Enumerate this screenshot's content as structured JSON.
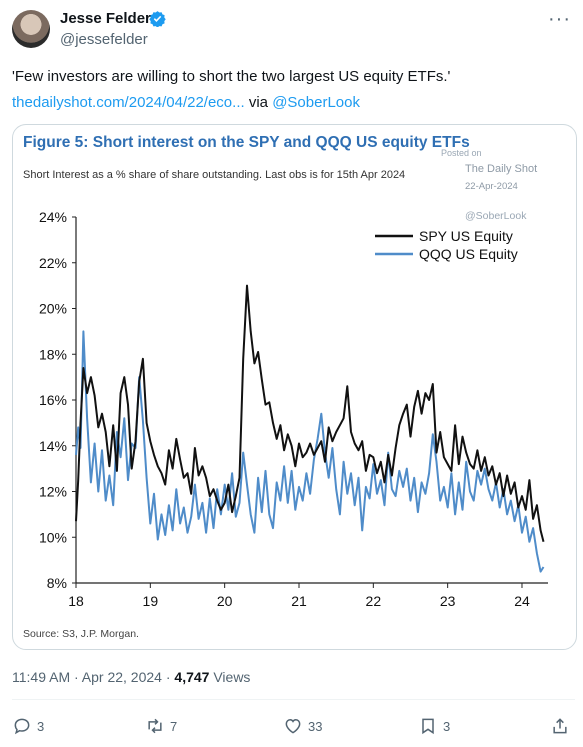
{
  "author": {
    "name": "Jesse Felder",
    "handle": "@jessefelder"
  },
  "tweet": {
    "quote": "'Few investors are willing to short the two largest US equity ETFs.'",
    "link_text": "thedailyshot.com/2024/04/22/eco...",
    "via_label": "via",
    "mention": "@SoberLook"
  },
  "figure": {
    "title": "Figure 5: Short interest on the SPY and QQQ US equity ETFs",
    "subtitle": "Short Interest as a % share of share outstanding. Last obs is for 15th Apr 2024",
    "source": "Source: S3, J.P. Morgan.",
    "watermark": {
      "posted_on": "Posted on",
      "site": "The Daily Shot",
      "date": "22-Apr-2024",
      "handle": "@SoberLook"
    }
  },
  "chart_data": {
    "type": "line",
    "title": "Figure 5: Short interest on the SPY and QQQ US equity ETFs",
    "subtitle": "Short Interest as a % share of share outstanding. Last obs is for 15th Apr 2024",
    "xlabel": "",
    "ylabel": "",
    "x_ticks": [
      "18",
      "19",
      "20",
      "21",
      "22",
      "23",
      "24"
    ],
    "y_ticks": [
      "8%",
      "10%",
      "12%",
      "14%",
      "16%",
      "18%",
      "20%",
      "22%",
      "24%"
    ],
    "xlim": [
      2018.0,
      2024.35
    ],
    "ylim": [
      8,
      24
    ],
    "grid": false,
    "legend_position": "top-right",
    "series": [
      {
        "name": "SPY US Equity",
        "color": "#111111",
        "x": [
          2018.0,
          2018.03,
          2018.06,
          2018.1,
          2018.15,
          2018.2,
          2018.25,
          2018.3,
          2018.35,
          2018.4,
          2018.45,
          2018.5,
          2018.55,
          2018.6,
          2018.65,
          2018.7,
          2018.75,
          2018.8,
          2018.85,
          2018.9,
          2018.95,
          2019.0,
          2019.05,
          2019.1,
          2019.15,
          2019.2,
          2019.25,
          2019.3,
          2019.35,
          2019.4,
          2019.45,
          2019.5,
          2019.55,
          2019.6,
          2019.65,
          2019.7,
          2019.75,
          2019.8,
          2019.85,
          2019.9,
          2019.95,
          2020.0,
          2020.05,
          2020.1,
          2020.15,
          2020.2,
          2020.25,
          2020.3,
          2020.35,
          2020.4,
          2020.45,
          2020.5,
          2020.55,
          2020.6,
          2020.65,
          2020.7,
          2020.75,
          2020.8,
          2020.85,
          2020.9,
          2020.95,
          2021.0,
          2021.05,
          2021.1,
          2021.15,
          2021.2,
          2021.25,
          2021.3,
          2021.35,
          2021.4,
          2021.45,
          2021.5,
          2021.55,
          2021.6,
          2021.65,
          2021.7,
          2021.75,
          2021.8,
          2021.85,
          2021.9,
          2021.95,
          2022.0,
          2022.05,
          2022.1,
          2022.15,
          2022.2,
          2022.25,
          2022.3,
          2022.35,
          2022.4,
          2022.45,
          2022.5,
          2022.55,
          2022.6,
          2022.65,
          2022.7,
          2022.75,
          2022.8,
          2022.85,
          2022.9,
          2022.95,
          2023.0,
          2023.05,
          2023.1,
          2023.15,
          2023.2,
          2023.25,
          2023.3,
          2023.35,
          2023.4,
          2023.45,
          2023.5,
          2023.55,
          2023.6,
          2023.65,
          2023.7,
          2023.75,
          2023.8,
          2023.85,
          2023.9,
          2023.95,
          2024.0,
          2024.05,
          2024.1,
          2024.15,
          2024.2,
          2024.25,
          2024.29
        ],
        "values": [
          10.7,
          12.5,
          15.0,
          17.4,
          16.3,
          17.0,
          16.2,
          14.8,
          15.4,
          14.6,
          13.1,
          14.9,
          12.9,
          16.3,
          17.0,
          15.8,
          13.0,
          14.2,
          16.8,
          17.8,
          15.0,
          14.2,
          13.6,
          13.1,
          12.8,
          12.3,
          13.8,
          13.0,
          14.3,
          13.4,
          12.6,
          12.8,
          11.9,
          13.9,
          12.7,
          13.1,
          12.6,
          11.8,
          12.1,
          11.6,
          11.2,
          11.5,
          12.3,
          11.1,
          11.8,
          12.6,
          17.8,
          21.0,
          19.0,
          17.6,
          18.1,
          16.9,
          15.8,
          15.9,
          15.0,
          14.3,
          14.9,
          13.8,
          14.5,
          14.0,
          13.1,
          14.1,
          13.5,
          13.7,
          14.1,
          13.6,
          13.9,
          14.2,
          13.3,
          14.8,
          14.2,
          14.6,
          14.9,
          15.2,
          16.6,
          14.6,
          14.1,
          13.8,
          14.2,
          12.9,
          13.6,
          13.5,
          12.8,
          13.3,
          12.4,
          13.6,
          12.7,
          13.9,
          14.9,
          15.4,
          15.8,
          14.4,
          15.7,
          16.4,
          15.4,
          16.3,
          16.0,
          16.7,
          13.7,
          14.6,
          13.5,
          13.2,
          12.9,
          14.9,
          13.2,
          14.4,
          13.7,
          13.2,
          13.0,
          13.8,
          12.9,
          13.5,
          12.7,
          13.1,
          12.3,
          12.8,
          11.8,
          12.7,
          11.9,
          12.4,
          11.3,
          11.8,
          11.2,
          12.5,
          10.8,
          11.4,
          10.3,
          9.8
        ]
      },
      {
        "name": "QQQ US Equity",
        "color": "#4f8cc9",
        "x": [
          2018.0,
          2018.03,
          2018.06,
          2018.1,
          2018.15,
          2018.2,
          2018.25,
          2018.3,
          2018.35,
          2018.4,
          2018.45,
          2018.5,
          2018.55,
          2018.6,
          2018.65,
          2018.7,
          2018.75,
          2018.8,
          2018.85,
          2018.9,
          2018.95,
          2019.0,
          2019.05,
          2019.1,
          2019.15,
          2019.2,
          2019.25,
          2019.3,
          2019.35,
          2019.4,
          2019.45,
          2019.5,
          2019.55,
          2019.6,
          2019.65,
          2019.7,
          2019.75,
          2019.8,
          2019.85,
          2019.9,
          2019.95,
          2020.0,
          2020.05,
          2020.1,
          2020.15,
          2020.2,
          2020.25,
          2020.3,
          2020.35,
          2020.4,
          2020.45,
          2020.5,
          2020.55,
          2020.6,
          2020.65,
          2020.7,
          2020.75,
          2020.8,
          2020.85,
          2020.9,
          2020.95,
          2021.0,
          2021.05,
          2021.1,
          2021.15,
          2021.2,
          2021.25,
          2021.3,
          2021.35,
          2021.4,
          2021.45,
          2021.5,
          2021.55,
          2021.6,
          2021.65,
          2021.7,
          2021.75,
          2021.8,
          2021.85,
          2021.9,
          2021.95,
          2022.0,
          2022.05,
          2022.1,
          2022.15,
          2022.2,
          2022.25,
          2022.3,
          2022.35,
          2022.4,
          2022.45,
          2022.5,
          2022.55,
          2022.6,
          2022.65,
          2022.7,
          2022.75,
          2022.8,
          2022.85,
          2022.9,
          2022.95,
          2023.0,
          2023.05,
          2023.1,
          2023.15,
          2023.2,
          2023.25,
          2023.3,
          2023.35,
          2023.4,
          2023.45,
          2023.5,
          2023.55,
          2023.6,
          2023.65,
          2023.7,
          2023.75,
          2023.8,
          2023.85,
          2023.9,
          2023.95,
          2024.0,
          2024.05,
          2024.1,
          2024.15,
          2024.2,
          2024.25,
          2024.29
        ],
        "values": [
          13.6,
          14.8,
          13.9,
          19.0,
          15.2,
          12.4,
          14.1,
          12.0,
          13.8,
          11.6,
          12.7,
          11.4,
          14.6,
          13.5,
          15.2,
          12.5,
          14.1,
          13.9,
          17.0,
          15.1,
          12.6,
          10.6,
          11.9,
          9.9,
          11.0,
          10.1,
          11.4,
          10.3,
          12.1,
          10.6,
          11.3,
          10.2,
          10.9,
          12.3,
          10.8,
          11.5,
          10.2,
          11.7,
          10.4,
          12.1,
          11.0,
          12.3,
          11.2,
          12.8,
          10.9,
          11.5,
          13.7,
          12.3,
          11.0,
          10.2,
          12.6,
          11.1,
          12.9,
          11.0,
          10.4,
          12.4,
          11.6,
          13.1,
          11.5,
          12.9,
          11.2,
          12.2,
          11.6,
          12.8,
          11.9,
          13.4,
          14.3,
          15.4,
          13.7,
          12.6,
          13.9,
          12.1,
          11.0,
          13.3,
          11.9,
          12.8,
          11.4,
          12.6,
          10.3,
          12.2,
          11.7,
          13.2,
          11.9,
          12.5,
          11.4,
          13.7,
          12.1,
          11.8,
          12.9,
          12.2,
          13.0,
          11.6,
          12.6,
          11.1,
          12.4,
          11.9,
          12.8,
          14.5,
          13.3,
          11.6,
          12.2,
          11.3,
          12.8,
          11.0,
          12.4,
          11.2,
          13.3,
          12.0,
          11.6,
          12.9,
          12.3,
          13.0,
          12.1,
          11.6,
          12.4,
          11.3,
          12.1,
          11.0,
          11.6,
          10.7,
          11.4,
          10.2,
          10.9,
          9.8,
          10.4,
          9.3,
          8.5,
          8.7
        ]
      }
    ]
  },
  "footer": {
    "timestamp": "11:49 AM · Apr 22, 2024 ·",
    "views_count": "4,747",
    "views_label": "Views"
  },
  "actions": {
    "replies": "3",
    "retweets": "7",
    "likes": "33",
    "bookmarks": "3"
  },
  "colors": {
    "accent": "#1d9bf0",
    "figure_title": "#2f6fb3",
    "spy_line": "#111111",
    "qqq_line": "#4f8cc9"
  }
}
